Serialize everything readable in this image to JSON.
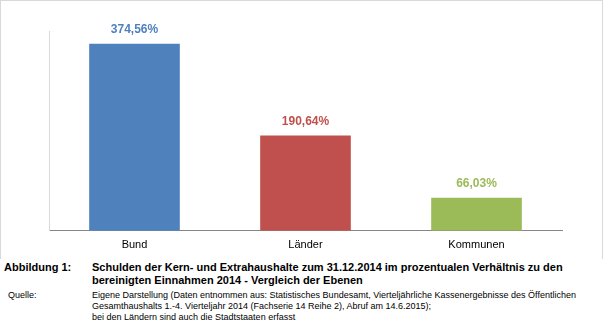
{
  "chart_data": {
    "type": "bar",
    "title": "Schulden der Kern- und Extrahaushalte zum 31.12.2014 im prozentualen Verhältnis zu den bereinigten Einnahmen 2014 - Vergleich der Ebenen",
    "categories": [
      "Bund",
      "Länder",
      "Kommunen"
    ],
    "values": [
      374.56,
      190.64,
      66.03
    ],
    "value_labels": [
      "374,56%",
      "190,64%",
      "66,03%"
    ],
    "colors": [
      "#4f81bd",
      "#c0504d",
      "#9bbb59"
    ],
    "ylim": [
      0,
      400
    ],
    "data_labels": true,
    "tick_labels": "x",
    "grid": false
  },
  "caption": {
    "figure_label": "Abbildung 1:",
    "source_label": "Quelle:",
    "source": [
      "Eigene Darstellung (Daten entnommen aus: Statistisches Bundesamt, Vierteljährliche Kassenergebnisse des Öffentlichen Gesamthaushalts 1.-4. Vierteljahr 2014 (Fachserie 14 Reihe 2), Abruf am 14.6.2015);",
      "bei den Ländern sind auch die Stadtstaaten erfasst"
    ]
  }
}
